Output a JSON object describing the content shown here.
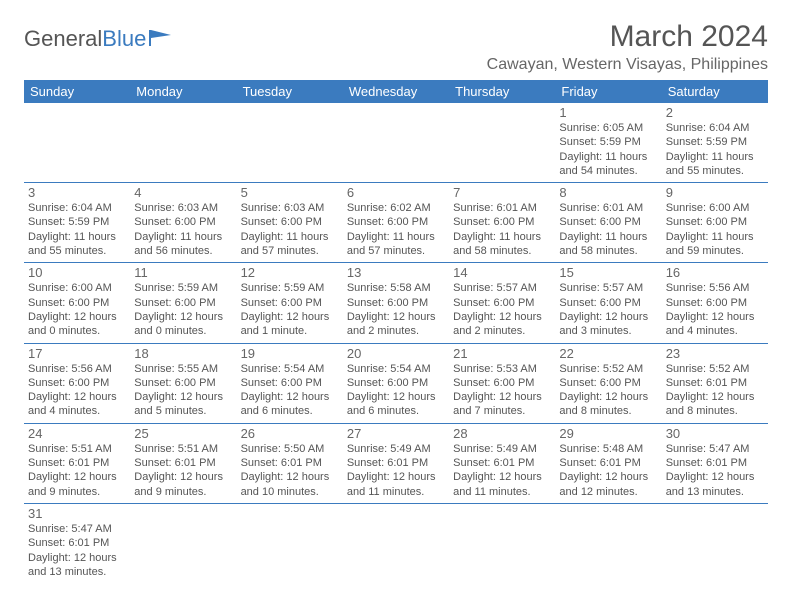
{
  "logo": {
    "text1": "General",
    "text2": "Blue"
  },
  "title": "March 2024",
  "location": "Cawayan, Western Visayas, Philippines",
  "colors": {
    "header_bg": "#3b7bbf",
    "header_text": "#ffffff",
    "body_text": "#555555",
    "border": "#3b7bbf",
    "background": "#ffffff"
  },
  "weekdays": [
    "Sunday",
    "Monday",
    "Tuesday",
    "Wednesday",
    "Thursday",
    "Friday",
    "Saturday"
  ],
  "weeks": [
    [
      null,
      null,
      null,
      null,
      null,
      {
        "n": "1",
        "sr": "Sunrise: 6:05 AM",
        "ss": "Sunset: 5:59 PM",
        "dl": "Daylight: 11 hours and 54 minutes."
      },
      {
        "n": "2",
        "sr": "Sunrise: 6:04 AM",
        "ss": "Sunset: 5:59 PM",
        "dl": "Daylight: 11 hours and 55 minutes."
      }
    ],
    [
      {
        "n": "3",
        "sr": "Sunrise: 6:04 AM",
        "ss": "Sunset: 5:59 PM",
        "dl": "Daylight: 11 hours and 55 minutes."
      },
      {
        "n": "4",
        "sr": "Sunrise: 6:03 AM",
        "ss": "Sunset: 6:00 PM",
        "dl": "Daylight: 11 hours and 56 minutes."
      },
      {
        "n": "5",
        "sr": "Sunrise: 6:03 AM",
        "ss": "Sunset: 6:00 PM",
        "dl": "Daylight: 11 hours and 57 minutes."
      },
      {
        "n": "6",
        "sr": "Sunrise: 6:02 AM",
        "ss": "Sunset: 6:00 PM",
        "dl": "Daylight: 11 hours and 57 minutes."
      },
      {
        "n": "7",
        "sr": "Sunrise: 6:01 AM",
        "ss": "Sunset: 6:00 PM",
        "dl": "Daylight: 11 hours and 58 minutes."
      },
      {
        "n": "8",
        "sr": "Sunrise: 6:01 AM",
        "ss": "Sunset: 6:00 PM",
        "dl": "Daylight: 11 hours and 58 minutes."
      },
      {
        "n": "9",
        "sr": "Sunrise: 6:00 AM",
        "ss": "Sunset: 6:00 PM",
        "dl": "Daylight: 11 hours and 59 minutes."
      }
    ],
    [
      {
        "n": "10",
        "sr": "Sunrise: 6:00 AM",
        "ss": "Sunset: 6:00 PM",
        "dl": "Daylight: 12 hours and 0 minutes."
      },
      {
        "n": "11",
        "sr": "Sunrise: 5:59 AM",
        "ss": "Sunset: 6:00 PM",
        "dl": "Daylight: 12 hours and 0 minutes."
      },
      {
        "n": "12",
        "sr": "Sunrise: 5:59 AM",
        "ss": "Sunset: 6:00 PM",
        "dl": "Daylight: 12 hours and 1 minute."
      },
      {
        "n": "13",
        "sr": "Sunrise: 5:58 AM",
        "ss": "Sunset: 6:00 PM",
        "dl": "Daylight: 12 hours and 2 minutes."
      },
      {
        "n": "14",
        "sr": "Sunrise: 5:57 AM",
        "ss": "Sunset: 6:00 PM",
        "dl": "Daylight: 12 hours and 2 minutes."
      },
      {
        "n": "15",
        "sr": "Sunrise: 5:57 AM",
        "ss": "Sunset: 6:00 PM",
        "dl": "Daylight: 12 hours and 3 minutes."
      },
      {
        "n": "16",
        "sr": "Sunrise: 5:56 AM",
        "ss": "Sunset: 6:00 PM",
        "dl": "Daylight: 12 hours and 4 minutes."
      }
    ],
    [
      {
        "n": "17",
        "sr": "Sunrise: 5:56 AM",
        "ss": "Sunset: 6:00 PM",
        "dl": "Daylight: 12 hours and 4 minutes."
      },
      {
        "n": "18",
        "sr": "Sunrise: 5:55 AM",
        "ss": "Sunset: 6:00 PM",
        "dl": "Daylight: 12 hours and 5 minutes."
      },
      {
        "n": "19",
        "sr": "Sunrise: 5:54 AM",
        "ss": "Sunset: 6:00 PM",
        "dl": "Daylight: 12 hours and 6 minutes."
      },
      {
        "n": "20",
        "sr": "Sunrise: 5:54 AM",
        "ss": "Sunset: 6:00 PM",
        "dl": "Daylight: 12 hours and 6 minutes."
      },
      {
        "n": "21",
        "sr": "Sunrise: 5:53 AM",
        "ss": "Sunset: 6:00 PM",
        "dl": "Daylight: 12 hours and 7 minutes."
      },
      {
        "n": "22",
        "sr": "Sunrise: 5:52 AM",
        "ss": "Sunset: 6:00 PM",
        "dl": "Daylight: 12 hours and 8 minutes."
      },
      {
        "n": "23",
        "sr": "Sunrise: 5:52 AM",
        "ss": "Sunset: 6:01 PM",
        "dl": "Daylight: 12 hours and 8 minutes."
      }
    ],
    [
      {
        "n": "24",
        "sr": "Sunrise: 5:51 AM",
        "ss": "Sunset: 6:01 PM",
        "dl": "Daylight: 12 hours and 9 minutes."
      },
      {
        "n": "25",
        "sr": "Sunrise: 5:51 AM",
        "ss": "Sunset: 6:01 PM",
        "dl": "Daylight: 12 hours and 9 minutes."
      },
      {
        "n": "26",
        "sr": "Sunrise: 5:50 AM",
        "ss": "Sunset: 6:01 PM",
        "dl": "Daylight: 12 hours and 10 minutes."
      },
      {
        "n": "27",
        "sr": "Sunrise: 5:49 AM",
        "ss": "Sunset: 6:01 PM",
        "dl": "Daylight: 12 hours and 11 minutes."
      },
      {
        "n": "28",
        "sr": "Sunrise: 5:49 AM",
        "ss": "Sunset: 6:01 PM",
        "dl": "Daylight: 12 hours and 11 minutes."
      },
      {
        "n": "29",
        "sr": "Sunrise: 5:48 AM",
        "ss": "Sunset: 6:01 PM",
        "dl": "Daylight: 12 hours and 12 minutes."
      },
      {
        "n": "30",
        "sr": "Sunrise: 5:47 AM",
        "ss": "Sunset: 6:01 PM",
        "dl": "Daylight: 12 hours and 13 minutes."
      }
    ],
    [
      {
        "n": "31",
        "sr": "Sunrise: 5:47 AM",
        "ss": "Sunset: 6:01 PM",
        "dl": "Daylight: 12 hours and 13 minutes."
      },
      null,
      null,
      null,
      null,
      null,
      null
    ]
  ]
}
